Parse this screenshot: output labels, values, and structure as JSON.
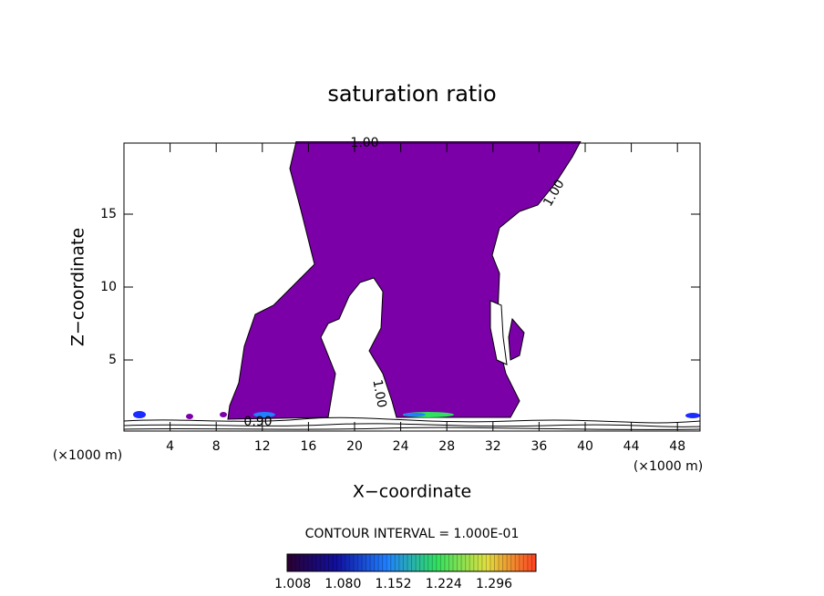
{
  "chart_data": {
    "type": "contour",
    "title": "saturation ratio",
    "x_label": "X−coordinate",
    "y_label": "Z−coordinate",
    "x_unit": "(×1000 m)",
    "y_unit": "(×1000 m)",
    "xlim": [
      0,
      50
    ],
    "ylim": [
      0,
      20
    ],
    "xticks": [
      4,
      8,
      12,
      16,
      20,
      24,
      28,
      32,
      36,
      40,
      44,
      48
    ],
    "yticks": [
      5,
      10,
      15
    ],
    "fill_color": "#7b00a8",
    "contour_labels": [
      "1.00",
      "1.00",
      "1.00",
      "0.90"
    ],
    "contour_interval": "CONTOUR INTERVAL = 1.000E-01",
    "colorbar": {
      "lim": [
        1.0,
        1.356
      ],
      "ticks": [
        1.008,
        {
          "value": 1.08,
          "label": "1.080"
        },
        1.152,
        1.224,
        1.296
      ],
      "colors": [
        "#2a0030",
        "#1010a0",
        "#2080ff",
        "#30e060",
        "#e0e040",
        "#ff4020"
      ]
    }
  }
}
